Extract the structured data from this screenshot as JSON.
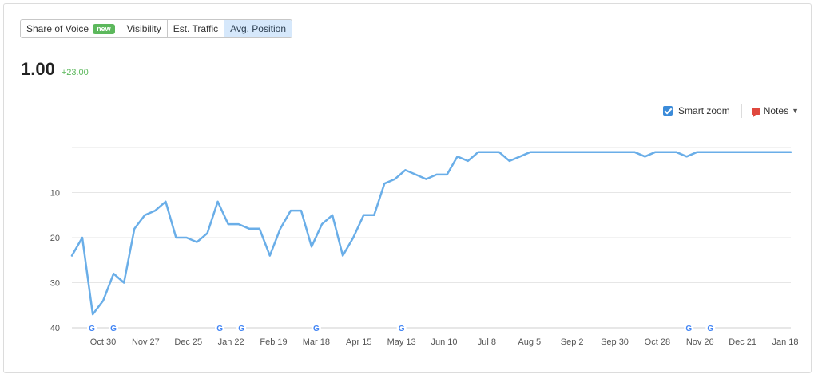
{
  "tabs": [
    {
      "label": "Share of Voice",
      "badge": "new",
      "active": false
    },
    {
      "label": "Visibility",
      "active": false
    },
    {
      "label": "Est. Traffic",
      "active": false
    },
    {
      "label": "Avg. Position",
      "active": true
    }
  ],
  "metric": {
    "value": "1.00",
    "delta": "+23.00"
  },
  "controls": {
    "smart_zoom_label": "Smart zoom",
    "smart_zoom_checked": true,
    "notes_label": "Notes"
  },
  "colors": {
    "line": "#6aaee8",
    "accent": "#3b8bd9",
    "positive": "#5cb85c",
    "notes": "#e0483e"
  },
  "chart_data": {
    "type": "line",
    "title": "",
    "xlabel": "",
    "ylabel": "",
    "y_inverted": true,
    "ylim": [
      0,
      40
    ],
    "yticks": [
      10,
      20,
      30,
      40
    ],
    "grid": true,
    "xtick_labels": [
      "Oct 30",
      "Nov 27",
      "Dec 25",
      "Jan 22",
      "Feb 19",
      "Mar 18",
      "Apr 15",
      "May 13",
      "Jun 10",
      "Jul 8",
      "Aug 5",
      "Sep 2",
      "Sep 30",
      "Oct 28",
      "Nov 26",
      "Dec 21",
      "Jan 18"
    ],
    "google_update_markers": [
      "Oct 30",
      "Oct 30",
      "Jan 22",
      "Jan 22",
      "Mar 18",
      "May 13",
      "Nov 26",
      "Nov 26"
    ],
    "series": [
      {
        "values": [
          24,
          20,
          37,
          34,
          28,
          30,
          18,
          15,
          14,
          12,
          20,
          20,
          21,
          19,
          12,
          17,
          17,
          18,
          18,
          24,
          18,
          14,
          14,
          22,
          17,
          15,
          24,
          20,
          15,
          15,
          8,
          7,
          5,
          6,
          7,
          6,
          6,
          2,
          3,
          1,
          1,
          1,
          3,
          2,
          1,
          1,
          1,
          1,
          1,
          1,
          1,
          1,
          1,
          1,
          1,
          2,
          1,
          1,
          1,
          2,
          1,
          1,
          1,
          1,
          1,
          1,
          1,
          1,
          1,
          1
        ]
      }
    ]
  }
}
